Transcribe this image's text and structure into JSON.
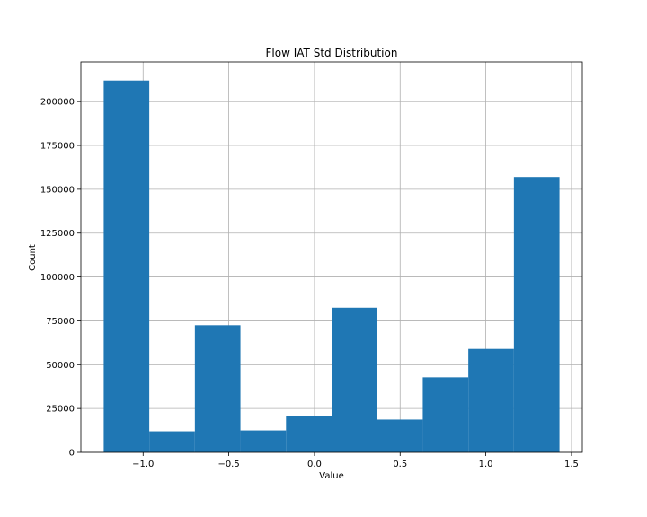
{
  "chart_data": {
    "type": "bar",
    "title": "Flow IAT Std Distribution",
    "xlabel": "Value",
    "ylabel": "Count",
    "bins": [
      {
        "x0": -1.23,
        "x1": -0.964,
        "count": 212000
      },
      {
        "x0": -0.964,
        "x1": -0.698,
        "count": 12000
      },
      {
        "x0": -0.698,
        "x1": -0.432,
        "count": 72500
      },
      {
        "x0": -0.432,
        "x1": -0.166,
        "count": 12500
      },
      {
        "x0": -0.166,
        "x1": 0.1,
        "count": 20800
      },
      {
        "x0": 0.1,
        "x1": 0.366,
        "count": 82500
      },
      {
        "x0": 0.366,
        "x1": 0.632,
        "count": 18700
      },
      {
        "x0": 0.632,
        "x1": 0.898,
        "count": 42800
      },
      {
        "x0": 0.898,
        "x1": 1.164,
        "count": 59000
      },
      {
        "x0": 1.164,
        "x1": 1.43,
        "count": 157000
      }
    ],
    "xlim": [
      -1.3633,
      1.5633
    ],
    "ylim": [
      0,
      222600
    ],
    "xticks": [
      -1.0,
      -0.5,
      0.0,
      0.5,
      1.0,
      1.5
    ],
    "xtick_labels": [
      "−1.0",
      "−0.5",
      "0.0",
      "0.5",
      "1.0",
      "1.5"
    ],
    "yticks": [
      0,
      25000,
      50000,
      75000,
      100000,
      125000,
      150000,
      175000,
      200000
    ],
    "ytick_labels": [
      "0",
      "25000",
      "50000",
      "75000",
      "100000",
      "125000",
      "150000",
      "175000",
      "200000"
    ],
    "grid": true,
    "bar_color": "#1f77b4",
    "grid_color": "#b0b0b0"
  }
}
